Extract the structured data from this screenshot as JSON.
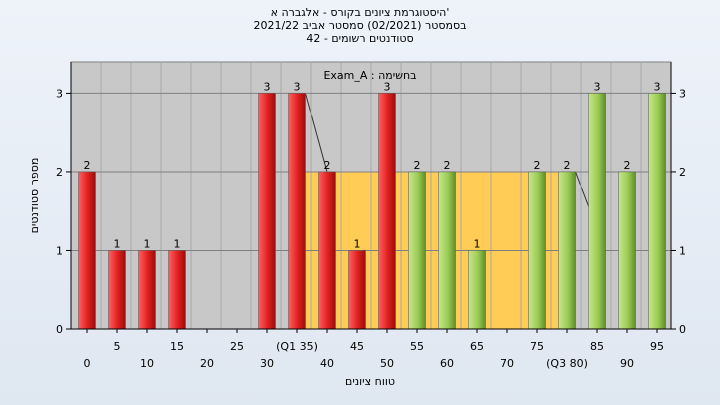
{
  "titles": {
    "line1": "היסטוגרמת ציונים בקורס - אלגברה א'",
    "line2": "בסמסטר  (02/2021)  סמסטר אביב 2021/22",
    "line3": "סטודנטים רשומים - 42"
  },
  "chart_data": {
    "type": "bar",
    "series_label": "Exam_A : בחשימה",
    "xlabel": "טווח ציונים",
    "ylabel": "מספר סטודנטים",
    "ylim": [
      0,
      3.4
    ],
    "yticks": [
      "0",
      "1",
      "2",
      "3"
    ],
    "categories": [
      "0",
      "5",
      "10",
      "15",
      "20",
      "25",
      "30",
      "(Q1 35)",
      "40",
      "45",
      "50",
      "55",
      "60",
      "65",
      "70",
      "75",
      "(Q3 80)",
      "85",
      "90",
      "95"
    ],
    "values": [
      2,
      1,
      1,
      1,
      0,
      0,
      3,
      3,
      2,
      1,
      3,
      2,
      2,
      1,
      0,
      2,
      2,
      3,
      2,
      3
    ],
    "colors": [
      "red",
      "red",
      "red",
      "red",
      "red",
      "red",
      "red",
      "red",
      "red",
      "red",
      "red",
      "green",
      "green",
      "green",
      "green",
      "green",
      "green",
      "green",
      "green",
      "green"
    ],
    "interquartile_band": {
      "from": "(Q1 35)",
      "to": "(Q3 80)",
      "value": 2,
      "color": "#ffcc55"
    },
    "grid": true
  },
  "colors": {
    "plot_bg": "#c8c8c8",
    "red_bar": "#e02020",
    "green_bar": "#9ccc55",
    "band": "#ffcc55"
  }
}
